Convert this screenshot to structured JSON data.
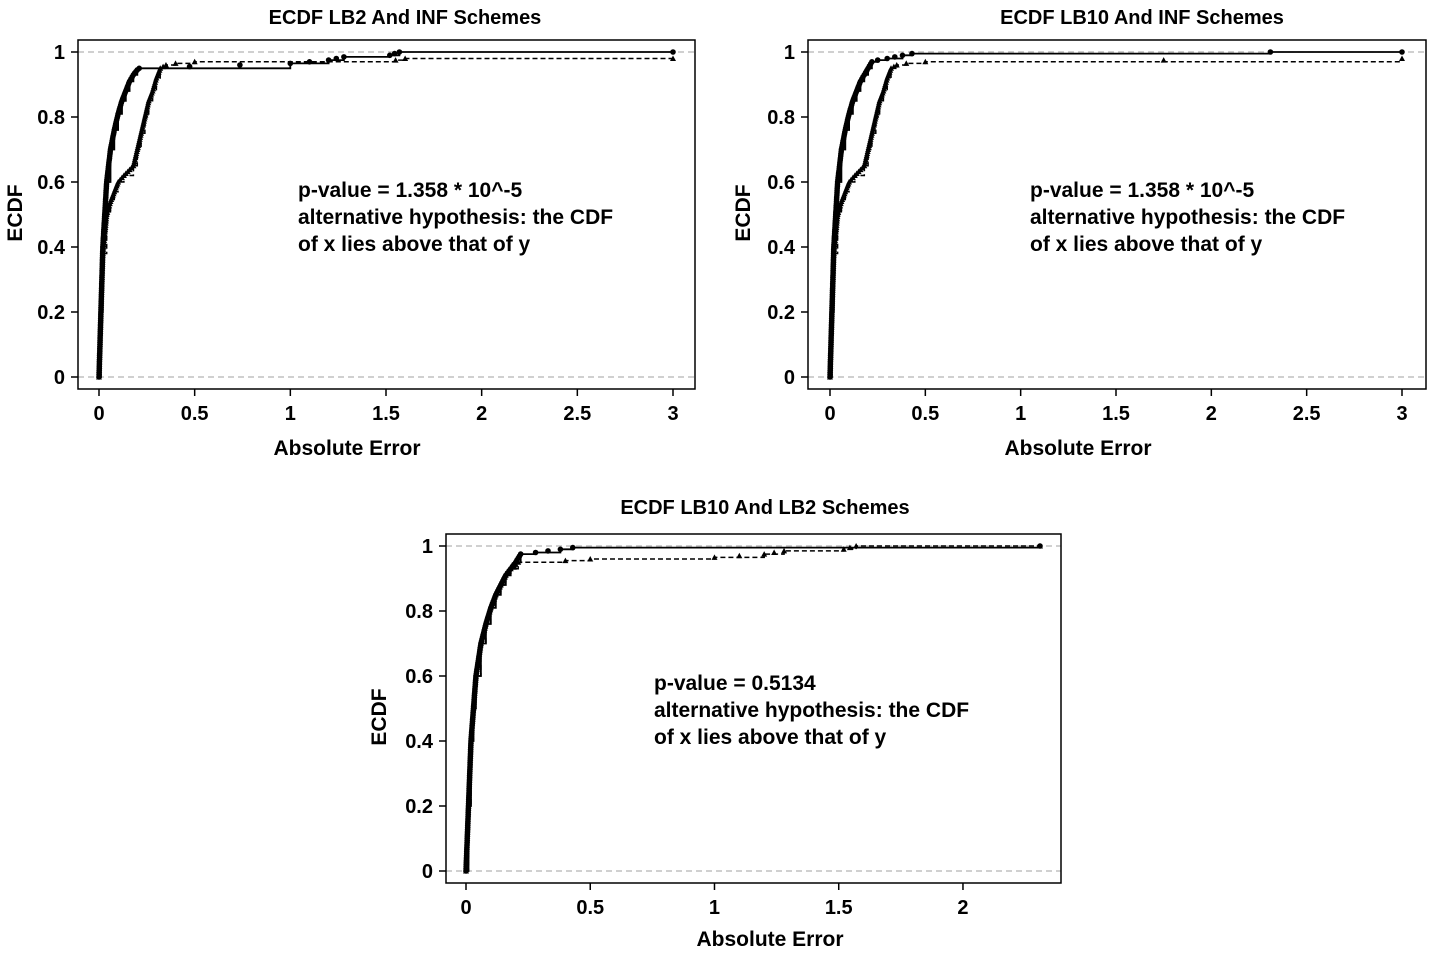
{
  "chart_data": [
    {
      "type": "line",
      "title": "ECDF LB2 And INF Schemes",
      "xlabel": "Absolute Error",
      "ylabel": "ECDF",
      "xlim": [
        0,
        3
      ],
      "ylim": [
        0,
        1
      ],
      "xticks": [
        0,
        0.5,
        1,
        1.5,
        2,
        2.5,
        3
      ],
      "xtick_labels": [
        "0",
        "0.5",
        "1",
        "1.5",
        "2",
        "2.5",
        "3"
      ],
      "yticks": [
        0,
        0.2,
        0.4,
        0.6,
        0.8,
        1
      ],
      "ytick_labels": [
        "0",
        "0.2",
        "0.4",
        "0.6",
        "0.8",
        "1"
      ],
      "grid": false,
      "reference_lines_y": [
        0,
        1
      ],
      "annotation": [
        "p-value = 1.358 * 10^-5",
        "alternative hypothesis: the CDF",
        "of x lies above that of y"
      ],
      "series": [
        {
          "marker": "circle",
          "linestyle": "solid",
          "x": [
            0,
            0.01,
            0.02,
            0.03,
            0.04,
            0.06,
            0.08,
            0.1,
            0.12,
            0.14,
            0.16,
            0.18,
            0.2,
            0.21,
            1.0,
            1.2,
            1.28,
            1.52,
            1.57,
            3.0
          ],
          "y": [
            0,
            0.2,
            0.4,
            0.5,
            0.6,
            0.7,
            0.76,
            0.81,
            0.85,
            0.88,
            0.91,
            0.93,
            0.945,
            0.95,
            0.965,
            0.975,
            0.985,
            0.99,
            1.0,
            1.0
          ]
        },
        {
          "marker": "triangle",
          "linestyle": "dashed",
          "x": [
            0,
            0.01,
            0.02,
            0.04,
            0.06,
            0.08,
            0.1,
            0.13,
            0.18,
            0.2,
            0.22,
            0.24,
            0.26,
            0.28,
            0.3,
            0.32,
            0.35,
            0.4,
            0.5,
            1.55,
            1.6,
            3.0
          ],
          "y": [
            0,
            0.2,
            0.38,
            0.5,
            0.54,
            0.57,
            0.6,
            0.62,
            0.65,
            0.7,
            0.75,
            0.8,
            0.85,
            0.88,
            0.92,
            0.95,
            0.96,
            0.965,
            0.97,
            0.975,
            0.98,
            0.98
          ]
        }
      ]
    },
    {
      "type": "line",
      "title": "ECDF LB10 And INF Schemes",
      "xlabel": "Absolute Error",
      "ylabel": "ECDF",
      "xlim": [
        0,
        3
      ],
      "ylim": [
        0,
        1
      ],
      "xticks": [
        0,
        0.5,
        1,
        1.5,
        2,
        2.5,
        3
      ],
      "xtick_labels": [
        "0",
        "0.5",
        "1",
        "1.5",
        "2",
        "2.5",
        "3"
      ],
      "yticks": [
        0,
        0.2,
        0.4,
        0.6,
        0.8,
        1
      ],
      "ytick_labels": [
        "0",
        "0.2",
        "0.4",
        "0.6",
        "0.8",
        "1"
      ],
      "grid": false,
      "reference_lines_y": [
        0,
        1
      ],
      "annotation": [
        "p-value = 1.358 * 10^-5",
        "alternative hypothesis: the CDF",
        "of x lies above that of y"
      ],
      "series": [
        {
          "marker": "circle",
          "linestyle": "solid",
          "x": [
            0,
            0.01,
            0.02,
            0.03,
            0.04,
            0.06,
            0.08,
            0.1,
            0.12,
            0.14,
            0.16,
            0.18,
            0.2,
            0.22,
            0.25,
            0.3,
            0.38,
            0.43,
            2.31,
            3.0
          ],
          "y": [
            0,
            0.2,
            0.4,
            0.5,
            0.6,
            0.7,
            0.76,
            0.81,
            0.85,
            0.88,
            0.91,
            0.93,
            0.95,
            0.97,
            0.975,
            0.98,
            0.99,
            0.995,
            1.0,
            1.0
          ]
        },
        {
          "marker": "triangle",
          "linestyle": "dashed",
          "x": [
            0,
            0.01,
            0.02,
            0.04,
            0.06,
            0.08,
            0.1,
            0.13,
            0.18,
            0.2,
            0.22,
            0.24,
            0.26,
            0.28,
            0.3,
            0.32,
            0.35,
            0.4,
            0.5,
            3.0
          ],
          "y": [
            0,
            0.2,
            0.38,
            0.5,
            0.54,
            0.57,
            0.6,
            0.62,
            0.65,
            0.7,
            0.75,
            0.8,
            0.85,
            0.88,
            0.92,
            0.95,
            0.96,
            0.965,
            0.97,
            0.98
          ]
        }
      ]
    },
    {
      "type": "line",
      "title": "ECDF LB10 And LB2 Schemes",
      "xlabel": "Absolute Error",
      "ylabel": "ECDF",
      "xlim": [
        0,
        2.31
      ],
      "ylim": [
        0,
        1
      ],
      "xticks": [
        0,
        0.5,
        1,
        1.5,
        2
      ],
      "xtick_labels": [
        "0",
        "0.5",
        "1",
        "1.5",
        "2"
      ],
      "yticks": [
        0,
        0.2,
        0.4,
        0.6,
        0.8,
        1
      ],
      "ytick_labels": [
        "0",
        "0.2",
        "0.4",
        "0.6",
        "0.8",
        "1"
      ],
      "grid": false,
      "reference_lines_y": [
        0,
        1
      ],
      "annotation": [
        "p-value = 0.5134",
        "alternative hypothesis: the CDF",
        "of x lies above that of y"
      ],
      "series": [
        {
          "marker": "circle",
          "linestyle": "solid",
          "x": [
            0,
            0.01,
            0.02,
            0.03,
            0.04,
            0.06,
            0.08,
            0.1,
            0.12,
            0.14,
            0.16,
            0.18,
            0.2,
            0.22,
            0.28,
            0.38,
            0.43,
            2.31
          ],
          "y": [
            0,
            0.2,
            0.4,
            0.5,
            0.6,
            0.7,
            0.76,
            0.81,
            0.85,
            0.88,
            0.91,
            0.93,
            0.95,
            0.975,
            0.98,
            0.99,
            0.995,
            1.0
          ]
        },
        {
          "marker": "triangle",
          "linestyle": "dashed",
          "x": [
            0,
            0.01,
            0.02,
            0.03,
            0.04,
            0.06,
            0.08,
            0.1,
            0.12,
            0.14,
            0.16,
            0.18,
            0.21,
            0.4,
            0.5,
            1.0,
            1.2,
            1.28,
            1.52,
            1.57,
            2.31
          ],
          "y": [
            0,
            0.2,
            0.4,
            0.5,
            0.6,
            0.7,
            0.76,
            0.81,
            0.85,
            0.88,
            0.91,
            0.93,
            0.95,
            0.955,
            0.96,
            0.965,
            0.975,
            0.985,
            0.99,
            1.0,
            1.0
          ]
        }
      ]
    }
  ]
}
